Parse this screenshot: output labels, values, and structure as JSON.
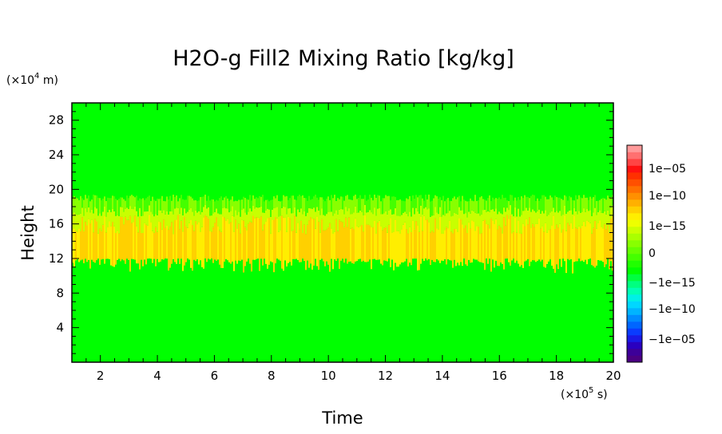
{
  "chart_data": {
    "type": "heatmap",
    "title": "H2O-g Fill2 Mixing Ratio [kg/kg]",
    "xlabel": "Time",
    "ylabel": "Height",
    "x_unit_prefix": "(×10",
    "x_unit_exp": "5",
    "x_unit_suffix": " s)",
    "y_unit_prefix": "(×10",
    "y_unit_exp": "4",
    "y_unit_suffix": " m)",
    "xlim": [
      1,
      20
    ],
    "ylim": [
      0,
      30
    ],
    "x_ticks": [
      2,
      4,
      6,
      8,
      10,
      12,
      14,
      16,
      18,
      20
    ],
    "y_ticks": [
      4,
      8,
      12,
      16,
      20,
      24,
      28
    ],
    "x_tick_labels": [
      "2",
      "4",
      "6",
      "8",
      "10",
      "12",
      "14",
      "16",
      "18",
      "20"
    ],
    "y_tick_labels": [
      "4",
      "8",
      "12",
      "16",
      "20",
      "24",
      "28"
    ],
    "background_value_color": "#00ff00",
    "layer": {
      "bottom_height": 12,
      "yellow_top_height": 15.5,
      "fade_top_height": 19,
      "colors": [
        "#ffd000",
        "#ffee00",
        "#c8ff00",
        "#88ff00",
        "#44ff00"
      ]
    },
    "colorbar": {
      "tick_labels": [
        "1e−05",
        "1e−10",
        "1e−15",
        "0",
        "−1e−15",
        "−1e−10",
        "−1e−05"
      ],
      "colors": [
        "#4b0082",
        "#3d0099",
        "#2a00c0",
        "#1a1ae6",
        "#0a3cff",
        "#0066ff",
        "#008cff",
        "#00b4ff",
        "#00d7ff",
        "#00f0e6",
        "#00ffb4",
        "#00ff80",
        "#00ff40",
        "#00ff00",
        "#20ff00",
        "#44ff00",
        "#66ff00",
        "#88ff00",
        "#aaff00",
        "#ccff00",
        "#eeff00",
        "#ffee00",
        "#ffd000",
        "#ffb000",
        "#ff9000",
        "#ff7000",
        "#ff5000",
        "#ff3000",
        "#ff1010",
        "#ff4444",
        "#ff7070",
        "#ff9a9a"
      ]
    }
  }
}
